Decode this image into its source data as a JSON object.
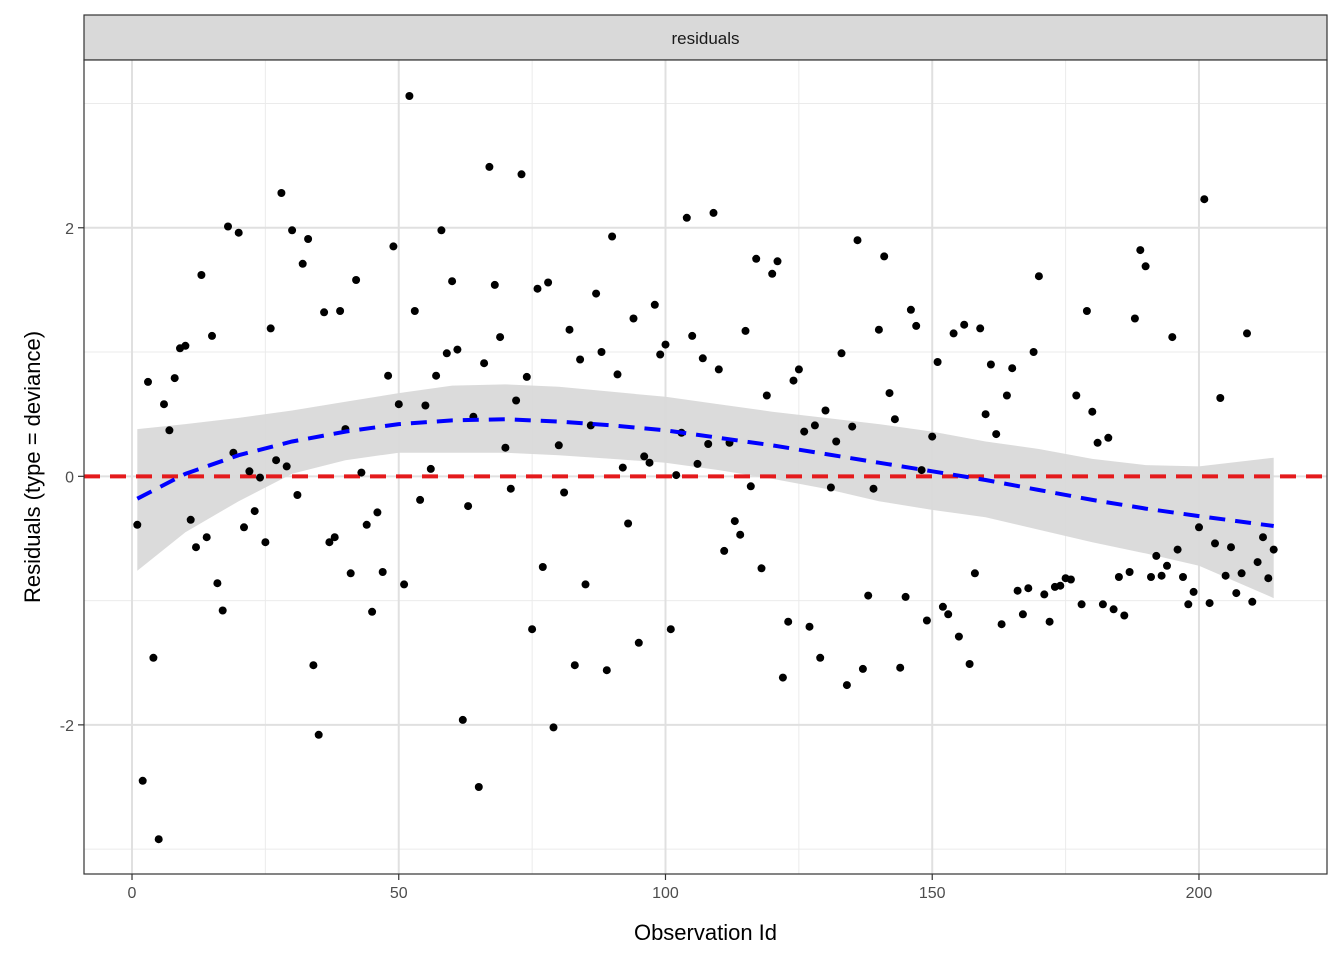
{
  "chart_data": {
    "type": "scatter",
    "facet_label": "residuals",
    "xlabel": "Observation Id",
    "ylabel": "Residuals (type = deviance)",
    "xlim": [
      -9,
      224
    ],
    "ylim": [
      -3.2,
      3.35
    ],
    "x_ticks": [
      0,
      50,
      100,
      150,
      200
    ],
    "x_tick_labels": [
      "0",
      "50",
      "100",
      "150",
      "200"
    ],
    "y_ticks": [
      -2,
      0,
      2
    ],
    "y_tick_labels": [
      "-2",
      "0",
      "2"
    ],
    "grid": true,
    "reference_line": {
      "y": 0,
      "color": "#e41a1c",
      "style": "dashed"
    },
    "smooth": {
      "color": "#0000ff",
      "style": "dashed",
      "band_color": "#d9d9d9",
      "x": [
        1,
        10,
        20,
        30,
        40,
        50,
        60,
        70,
        80,
        90,
        100,
        110,
        120,
        130,
        140,
        150,
        160,
        170,
        180,
        190,
        200,
        214
      ],
      "fit": [
        -0.18,
        0.02,
        0.17,
        0.28,
        0.36,
        0.42,
        0.45,
        0.46,
        0.44,
        0.41,
        0.37,
        0.31,
        0.25,
        0.18,
        0.11,
        0.04,
        -0.03,
        -0.11,
        -0.19,
        -0.26,
        -0.32,
        -0.4
      ],
      "upper": [
        0.38,
        0.42,
        0.47,
        0.53,
        0.6,
        0.67,
        0.73,
        0.74,
        0.72,
        0.68,
        0.64,
        0.58,
        0.52,
        0.47,
        0.42,
        0.36,
        0.28,
        0.22,
        0.14,
        0.09,
        0.08,
        0.15
      ],
      "lower": [
        -0.76,
        -0.45,
        -0.2,
        0.02,
        0.13,
        0.19,
        0.19,
        0.19,
        0.17,
        0.14,
        0.11,
        0.05,
        -0.02,
        -0.1,
        -0.2,
        -0.27,
        -0.33,
        -0.43,
        -0.53,
        -0.62,
        -0.72,
        -0.98
      ]
    },
    "series": [
      {
        "color": "#000000",
        "points": [
          [
            1,
            -0.39
          ],
          [
            2,
            -2.45
          ],
          [
            3,
            0.76
          ],
          [
            4,
            -1.46
          ],
          [
            5,
            -2.92
          ],
          [
            6,
            0.58
          ],
          [
            7,
            0.37
          ],
          [
            8,
            0.79
          ],
          [
            9,
            1.03
          ],
          [
            10,
            1.05
          ],
          [
            11,
            -0.35
          ],
          [
            12,
            -0.57
          ],
          [
            13,
            1.62
          ],
          [
            14,
            -0.49
          ],
          [
            15,
            1.13
          ],
          [
            16,
            -0.86
          ],
          [
            17,
            -1.08
          ],
          [
            18,
            2.01
          ],
          [
            19,
            0.19
          ],
          [
            20,
            1.96
          ],
          [
            21,
            -0.41
          ],
          [
            22,
            0.04
          ],
          [
            23,
            -0.28
          ],
          [
            24,
            -0.01
          ],
          [
            25,
            -0.53
          ],
          [
            26,
            1.19
          ],
          [
            27,
            0.13
          ],
          [
            28,
            2.28
          ],
          [
            29,
            0.08
          ],
          [
            30,
            1.98
          ],
          [
            31,
            -0.15
          ],
          [
            32,
            1.71
          ],
          [
            33,
            1.91
          ],
          [
            34,
            -1.52
          ],
          [
            35,
            -2.08
          ],
          [
            36,
            1.32
          ],
          [
            37,
            -0.53
          ],
          [
            38,
            -0.49
          ],
          [
            39,
            1.33
          ],
          [
            40,
            0.38
          ],
          [
            41,
            -0.78
          ],
          [
            42,
            1.58
          ],
          [
            43,
            0.03
          ],
          [
            44,
            -0.39
          ],
          [
            45,
            -1.09
          ],
          [
            46,
            -0.29
          ],
          [
            47,
            -0.77
          ],
          [
            48,
            0.81
          ],
          [
            49,
            1.85
          ],
          [
            50,
            0.58
          ],
          [
            51,
            -0.87
          ],
          [
            52,
            3.06
          ],
          [
            53,
            1.33
          ],
          [
            54,
            -0.19
          ],
          [
            55,
            0.57
          ],
          [
            56,
            0.06
          ],
          [
            57,
            0.81
          ],
          [
            58,
            1.98
          ],
          [
            59,
            0.99
          ],
          [
            60,
            1.57
          ],
          [
            61,
            1.02
          ],
          [
            62,
            -1.96
          ],
          [
            63,
            -0.24
          ],
          [
            64,
            0.48
          ],
          [
            65,
            -2.5
          ],
          [
            66,
            0.91
          ],
          [
            67,
            2.49
          ],
          [
            68,
            1.54
          ],
          [
            69,
            1.12
          ],
          [
            70,
            0.23
          ],
          [
            71,
            -0.1
          ],
          [
            72,
            0.61
          ],
          [
            73,
            2.43
          ],
          [
            74,
            0.8
          ],
          [
            75,
            -1.23
          ],
          [
            76,
            1.51
          ],
          [
            77,
            -0.73
          ],
          [
            78,
            1.56
          ],
          [
            79,
            -2.02
          ],
          [
            80,
            0.25
          ],
          [
            81,
            -0.13
          ],
          [
            82,
            1.18
          ],
          [
            83,
            -1.52
          ],
          [
            84,
            0.94
          ],
          [
            85,
            -0.87
          ],
          [
            86,
            0.41
          ],
          [
            87,
            1.47
          ],
          [
            88,
            1.0
          ],
          [
            89,
            -1.56
          ],
          [
            90,
            1.93
          ],
          [
            91,
            0.82
          ],
          [
            92,
            0.07
          ],
          [
            93,
            -0.38
          ],
          [
            94,
            1.27
          ],
          [
            95,
            -1.34
          ],
          [
            96,
            0.16
          ],
          [
            97,
            0.11
          ],
          [
            98,
            1.38
          ],
          [
            99,
            0.98
          ],
          [
            100,
            1.06
          ],
          [
            101,
            -1.23
          ],
          [
            102,
            0.01
          ],
          [
            103,
            0.35
          ],
          [
            104,
            2.08
          ],
          [
            105,
            1.13
          ],
          [
            106,
            0.1
          ],
          [
            107,
            0.95
          ],
          [
            108,
            0.26
          ],
          [
            109,
            2.12
          ],
          [
            110,
            0.86
          ],
          [
            111,
            -0.6
          ],
          [
            112,
            0.27
          ],
          [
            113,
            -0.36
          ],
          [
            114,
            -0.47
          ],
          [
            115,
            1.17
          ],
          [
            116,
            -0.08
          ],
          [
            117,
            1.75
          ],
          [
            118,
            -0.74
          ],
          [
            119,
            0.65
          ],
          [
            120,
            1.63
          ],
          [
            121,
            1.73
          ],
          [
            122,
            -1.62
          ],
          [
            123,
            -1.17
          ],
          [
            124,
            0.77
          ],
          [
            125,
            0.86
          ],
          [
            126,
            0.36
          ],
          [
            127,
            -1.21
          ],
          [
            128,
            0.41
          ],
          [
            129,
            -1.46
          ],
          [
            130,
            0.53
          ],
          [
            131,
            -0.09
          ],
          [
            132,
            0.28
          ],
          [
            133,
            0.99
          ],
          [
            134,
            -1.68
          ],
          [
            135,
            0.4
          ],
          [
            136,
            1.9
          ],
          [
            137,
            -1.55
          ],
          [
            138,
            -0.96
          ],
          [
            139,
            -0.1
          ],
          [
            140,
            1.18
          ],
          [
            141,
            1.77
          ],
          [
            142,
            0.67
          ],
          [
            143,
            0.46
          ],
          [
            144,
            -1.54
          ],
          [
            145,
            -0.97
          ],
          [
            146,
            1.34
          ],
          [
            147,
            1.21
          ],
          [
            148,
            0.05
          ],
          [
            149,
            -1.16
          ],
          [
            150,
            0.32
          ],
          [
            151,
            0.92
          ],
          [
            152,
            -1.05
          ],
          [
            153,
            -1.11
          ],
          [
            154,
            1.15
          ],
          [
            155,
            -1.29
          ],
          [
            156,
            1.22
          ],
          [
            157,
            -1.51
          ],
          [
            158,
            -0.78
          ],
          [
            159,
            1.19
          ],
          [
            160,
            0.5
          ],
          [
            161,
            0.9
          ],
          [
            162,
            0.34
          ],
          [
            163,
            -1.19
          ],
          [
            164,
            0.65
          ],
          [
            165,
            0.87
          ],
          [
            166,
            -0.92
          ],
          [
            167,
            -1.11
          ],
          [
            168,
            -0.9
          ],
          [
            169,
            1.0
          ],
          [
            170,
            1.61
          ],
          [
            171,
            -0.95
          ],
          [
            172,
            -1.17
          ],
          [
            173,
            -0.89
          ],
          [
            174,
            -0.88
          ],
          [
            175,
            -0.82
          ],
          [
            176,
            -0.83
          ],
          [
            177,
            0.65
          ],
          [
            178,
            -1.03
          ],
          [
            179,
            1.33
          ],
          [
            180,
            0.52
          ],
          [
            181,
            0.27
          ],
          [
            182,
            -1.03
          ],
          [
            183,
            0.31
          ],
          [
            184,
            -1.07
          ],
          [
            185,
            -0.81
          ],
          [
            186,
            -1.12
          ],
          [
            187,
            -0.77
          ],
          [
            188,
            1.27
          ],
          [
            189,
            1.82
          ],
          [
            190,
            1.69
          ],
          [
            191,
            -0.81
          ],
          [
            192,
            -0.64
          ],
          [
            193,
            -0.8
          ],
          [
            194,
            -0.72
          ],
          [
            195,
            1.12
          ],
          [
            196,
            -0.59
          ],
          [
            197,
            -0.81
          ],
          [
            198,
            -1.03
          ],
          [
            199,
            -0.93
          ],
          [
            200,
            -0.41
          ],
          [
            201,
            2.23
          ],
          [
            202,
            -1.02
          ],
          [
            203,
            -0.54
          ],
          [
            204,
            0.63
          ],
          [
            205,
            -0.8
          ],
          [
            206,
            -0.57
          ],
          [
            207,
            -0.94
          ],
          [
            208,
            -0.78
          ],
          [
            209,
            1.15
          ],
          [
            210,
            -1.01
          ],
          [
            211,
            -0.69
          ],
          [
            212,
            -0.49
          ],
          [
            213,
            -0.82
          ],
          [
            214,
            -0.59
          ]
        ]
      }
    ]
  }
}
